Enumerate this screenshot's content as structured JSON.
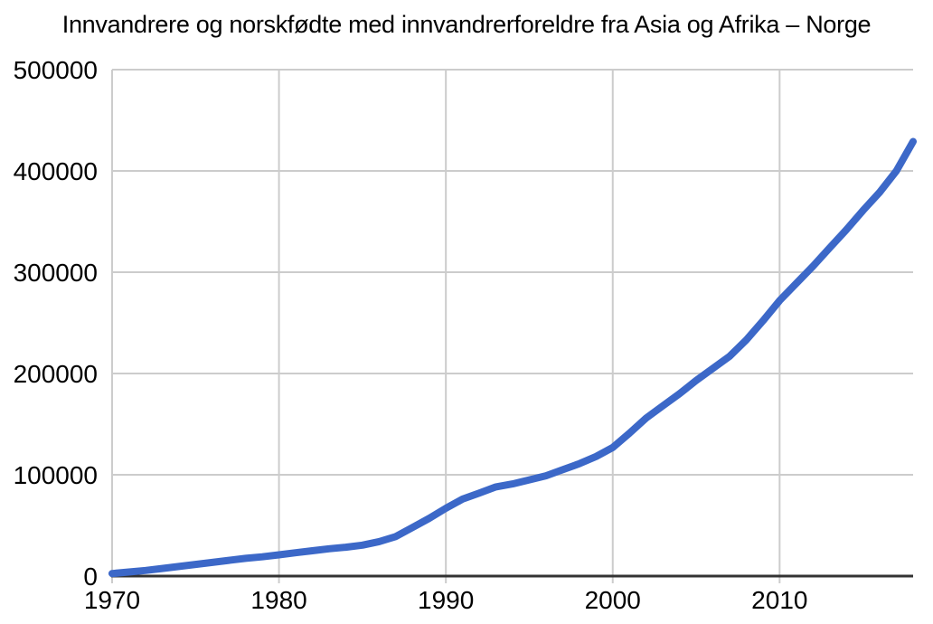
{
  "chart_data": {
    "type": "line",
    "title": "Innvandrere og norskfødte med innvandrerforeldre fra Asia og Afrika – Norge",
    "xlabel": "",
    "ylabel": "",
    "xlim": [
      1970,
      2018
    ],
    "ylim": [
      0,
      500000
    ],
    "x_tick_labels": [
      "1970",
      "1980",
      "1990",
      "2000",
      "2010"
    ],
    "x_tick_values": [
      1970,
      1980,
      1990,
      2000,
      2010
    ],
    "y_tick_labels": [
      "0",
      "100000",
      "200000",
      "300000",
      "400000",
      "500000"
    ],
    "y_tick_values": [
      0,
      100000,
      200000,
      300000,
      400000,
      500000
    ],
    "grid": true,
    "legend": false,
    "colors": {
      "line": "#3C68C8",
      "gridline": "#cccccc",
      "axis": "#333333",
      "text": "#000000",
      "background": "#ffffff"
    },
    "series": [
      {
        "x": [
          1970,
          1971,
          1972,
          1973,
          1974,
          1975,
          1976,
          1977,
          1978,
          1979,
          1980,
          1981,
          1982,
          1983,
          1984,
          1985,
          1986,
          1987,
          1988,
          1989,
          1990,
          1991,
          1992,
          1993,
          1994,
          1995,
          1996,
          1997,
          1998,
          1999,
          2000,
          2001,
          2002,
          2003,
          2004,
          2005,
          2006,
          2007,
          2008,
          2009,
          2010,
          2011,
          2012,
          2013,
          2014,
          2015,
          2016,
          2017,
          2018
        ],
        "values": [
          2500,
          4000,
          5500,
          7500,
          9500,
          11500,
          13500,
          15500,
          17500,
          19000,
          21000,
          23000,
          25000,
          27000,
          28500,
          30500,
          34000,
          39000,
          48000,
          57000,
          67000,
          76000,
          82000,
          88000,
          91000,
          95000,
          99000,
          105000,
          111000,
          118000,
          127000,
          141000,
          156000,
          168000,
          180000,
          193000,
          205000,
          217000,
          233000,
          252000,
          272000,
          289000,
          306000,
          324000,
          342000,
          361000,
          379000,
          400000,
          429000
        ]
      }
    ]
  }
}
